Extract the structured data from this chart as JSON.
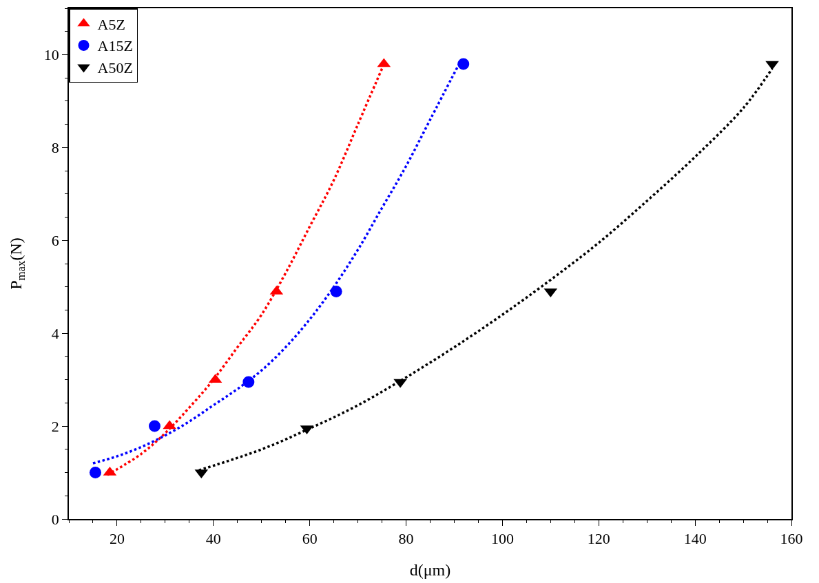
{
  "chart_data": {
    "type": "scatter",
    "xlabel": "d(μm)",
    "ylabel": "P$_{max}$(N)",
    "xlim": [
      10,
      160
    ],
    "ylim": [
      0,
      11
    ],
    "xticks": [
      20,
      40,
      60,
      80,
      100,
      120,
      140,
      160
    ],
    "yticks": [
      0,
      2,
      4,
      6,
      8,
      10
    ],
    "legend": "top left",
    "series": [
      {
        "type": "line",
        "color": "#ff0000",
        "line_style": "dotted",
        "marker": "none",
        "x": [
          18,
          25,
          30,
          35,
          40,
          45,
          50,
          55,
          60,
          65,
          70,
          75
        ],
        "values": [
          0.95,
          1.4,
          1.85,
          2.4,
          3.0,
          3.7,
          4.4,
          5.3,
          6.3,
          7.3,
          8.5,
          9.7
        ]
      },
      {
        "type": "line",
        "color": "#0000ff",
        "line_style": "dotted",
        "marker": "none",
        "x": [
          15,
          20,
          25,
          30,
          35,
          40,
          45,
          50,
          55,
          60,
          65,
          70,
          75,
          80,
          85,
          91
        ],
        "values": [
          1.2,
          1.35,
          1.55,
          1.8,
          2.1,
          2.45,
          2.8,
          3.2,
          3.7,
          4.3,
          5.0,
          5.8,
          6.7,
          7.6,
          8.6,
          9.8
        ]
      },
      {
        "type": "line",
        "color": "#000000",
        "line_style": "dotted",
        "marker": "none",
        "x": [
          37,
          50,
          60,
          70,
          80,
          90,
          100,
          110,
          120,
          130,
          140,
          150,
          156
        ],
        "values": [
          1.05,
          1.5,
          1.95,
          2.45,
          3.05,
          3.7,
          4.4,
          5.15,
          5.95,
          6.85,
          7.8,
          8.85,
          9.7
        ]
      },
      {
        "name": "A5Z",
        "color": "#ff0000",
        "marker": "triangle",
        "x": [
          18.5,
          30.9,
          40.4,
          53.1,
          75.4
        ],
        "values": [
          1.0,
          2.0,
          3.0,
          4.9,
          9.8
        ]
      },
      {
        "name": "A15Z",
        "color": "#0000ff",
        "marker": "circle",
        "x": [
          15.5,
          27.8,
          47.3,
          65.5,
          91.9
        ],
        "values": [
          1.0,
          2.0,
          2.95,
          4.9,
          9.8
        ]
      },
      {
        "name": "A50Z",
        "color": "#000000",
        "marker": "triangle-down",
        "x": [
          37.5,
          59.4,
          78.8,
          110,
          156
        ],
        "values": [
          1.0,
          1.95,
          2.95,
          4.9,
          9.8
        ]
      }
    ]
  }
}
